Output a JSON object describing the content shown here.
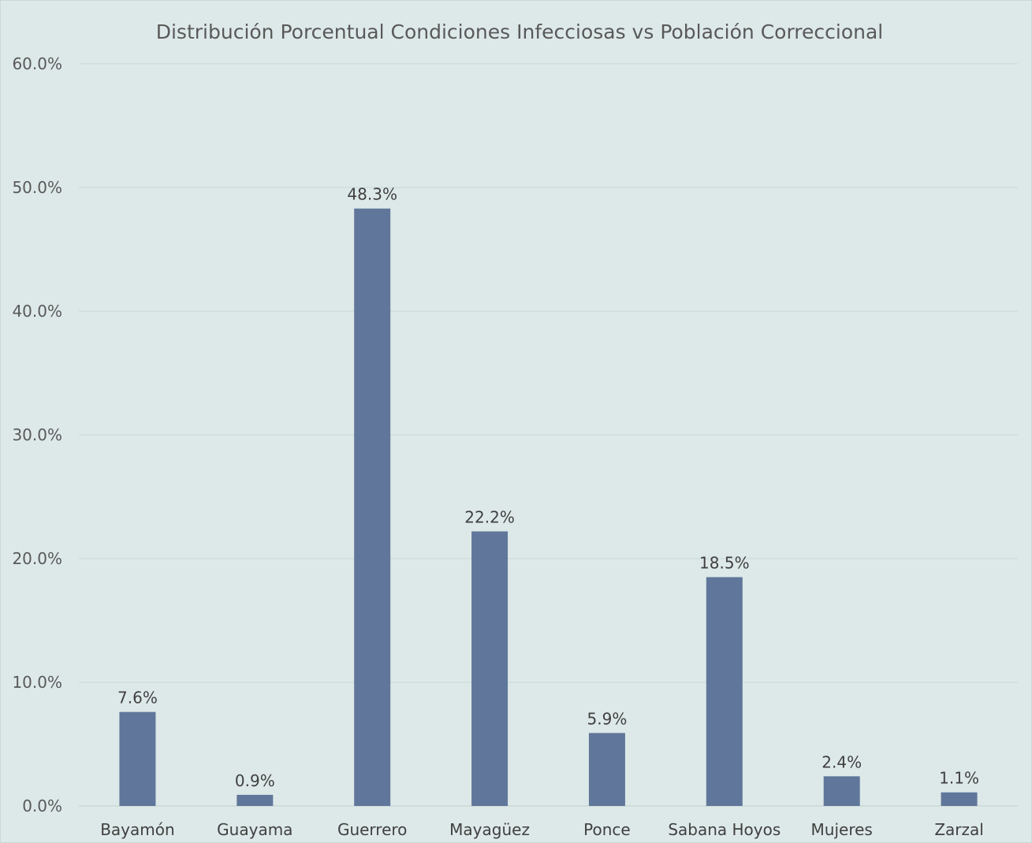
{
  "chart_data": {
    "type": "bar",
    "title": "Distribución Porcentual  Condiciones Infecciosas vs Población Correccional",
    "xlabel": "",
    "ylabel": "",
    "categories": [
      "Bayamón",
      "Guayama",
      "Guerrero",
      "Mayagüez",
      "Ponce",
      "Sabana Hoyos",
      "Mujeres",
      "Zarzal"
    ],
    "values": [
      7.6,
      0.9,
      48.3,
      22.2,
      5.9,
      18.5,
      2.4,
      1.1
    ],
    "value_labels": [
      "7.6%",
      "0.9%",
      "48.3%",
      "22.2%",
      "5.9%",
      "18.5%",
      "2.4%",
      "1.1%"
    ],
    "ylim": [
      0,
      60
    ],
    "yticks": [
      0,
      10,
      20,
      30,
      40,
      50,
      60
    ],
    "ytick_labels": [
      "0.0%",
      "10.0%",
      "20.0%",
      "30.0%",
      "40.0%",
      "50.0%",
      "60.0%"
    ],
    "grid": true,
    "legend": "none",
    "colors": {
      "bar": "#60779b",
      "background": "#dde9e8"
    }
  }
}
